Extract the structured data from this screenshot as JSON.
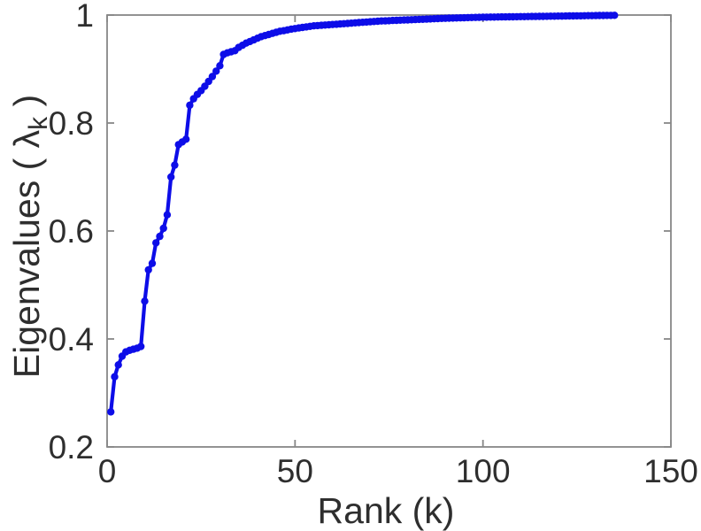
{
  "figure": {
    "background": "#ffffff"
  },
  "chart_data": {
    "type": "line",
    "xlabel": "Rank (k)",
    "ylabel": "Eigenvalues ( λk )",
    "ylabel_prefix": "Eigenvalues ( λ",
    "ylabel_sub": "k",
    "ylabel_suffix": " )",
    "xlim": [
      0,
      150
    ],
    "ylim": [
      0.2,
      1
    ],
    "xticks": [
      0,
      50,
      100,
      150
    ],
    "xtick_labels": [
      "0",
      "50",
      "100",
      "150"
    ],
    "yticks": [
      0.2,
      0.4,
      0.6,
      0.8,
      1
    ],
    "ytick_labels": [
      "0.2",
      "0.4",
      "0.6",
      "0.8",
      "1"
    ],
    "grid": false,
    "legend": "none",
    "axis_color": "#878787",
    "text_color": "#2e2e2e",
    "series": [
      {
        "name": "cumulative-eigenvalue-fraction",
        "color": "#0d0de8",
        "marker": "circle",
        "x": [
          1,
          2,
          3,
          4,
          5,
          6,
          7,
          8,
          9,
          10,
          11,
          12,
          13,
          14,
          15,
          16,
          17,
          18,
          19,
          20,
          21,
          22,
          23,
          24,
          25,
          26,
          27,
          28,
          29,
          30,
          31,
          32,
          33,
          34,
          35,
          36,
          37,
          38,
          39,
          40,
          41,
          42,
          43,
          44,
          45,
          46,
          47,
          48,
          49,
          50,
          51,
          52,
          53,
          54,
          55,
          56,
          57,
          58,
          59,
          60,
          61,
          62,
          63,
          64,
          65,
          66,
          67,
          68,
          69,
          70,
          71,
          72,
          73,
          74,
          75,
          76,
          77,
          78,
          79,
          80,
          81,
          82,
          83,
          84,
          85,
          86,
          87,
          88,
          89,
          90,
          91,
          92,
          93,
          94,
          95,
          96,
          97,
          98,
          99,
          100,
          101,
          102,
          103,
          104,
          105,
          106,
          107,
          108,
          109,
          110,
          111,
          112,
          113,
          114,
          115,
          116,
          117,
          118,
          119,
          120,
          121,
          122,
          123,
          124,
          125,
          126,
          127,
          128,
          129,
          130,
          131,
          132,
          133,
          134,
          135
        ],
        "y": [
          0.265,
          0.33,
          0.352,
          0.368,
          0.376,
          0.379,
          0.381,
          0.383,
          0.386,
          0.47,
          0.528,
          0.54,
          0.578,
          0.59,
          0.605,
          0.63,
          0.7,
          0.722,
          0.76,
          0.765,
          0.77,
          0.833,
          0.845,
          0.853,
          0.86,
          0.868,
          0.877,
          0.886,
          0.896,
          0.906,
          0.927,
          0.93,
          0.932,
          0.934,
          0.94,
          0.944,
          0.948,
          0.951,
          0.954,
          0.957,
          0.96,
          0.962,
          0.964,
          0.966,
          0.968,
          0.97,
          0.971,
          0.9725,
          0.974,
          0.975,
          0.976,
          0.977,
          0.978,
          0.979,
          0.98,
          0.9805,
          0.981,
          0.9815,
          0.982,
          0.9825,
          0.983,
          0.9835,
          0.984,
          0.9845,
          0.985,
          0.9855,
          0.986,
          0.9865,
          0.987,
          0.9875,
          0.988,
          0.9885,
          0.989,
          0.9892,
          0.9895,
          0.99,
          0.9902,
          0.9905,
          0.9908,
          0.991,
          0.9913,
          0.9916,
          0.9919,
          0.9922,
          0.9925,
          0.9928,
          0.9931,
          0.9934,
          0.9937,
          0.994,
          0.9942,
          0.9944,
          0.9946,
          0.9948,
          0.995,
          0.9952,
          0.9954,
          0.9956,
          0.9958,
          0.996,
          0.9961,
          0.9962,
          0.9963,
          0.9964,
          0.9965,
          0.9966,
          0.9967,
          0.9968,
          0.9969,
          0.997,
          0.9971,
          0.9972,
          0.9973,
          0.9974,
          0.9975,
          0.9976,
          0.9977,
          0.9978,
          0.9979,
          0.998,
          0.9981,
          0.9982,
          0.9983,
          0.9984,
          0.9985,
          0.9986,
          0.9987,
          0.9988,
          0.9989,
          0.999,
          0.9991,
          0.9992,
          0.9993,
          0.9994,
          0.9995
        ]
      }
    ]
  }
}
